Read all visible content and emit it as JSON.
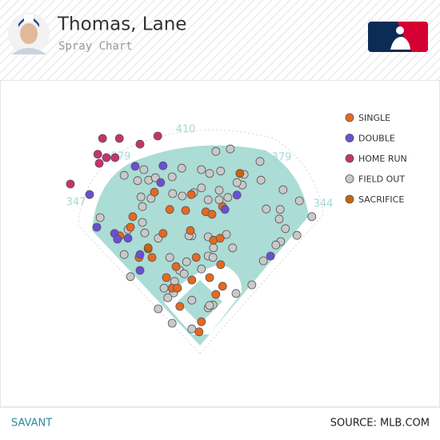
{
  "chart_data": {
    "type": "scatter",
    "title": "Thomas, Lane",
    "subtitle": "Spray Chart",
    "fence_labels": [
      347,
      379,
      410,
      379,
      344
    ],
    "xlim": [
      -280,
      280
    ],
    "ylim": [
      -20,
      440
    ],
    "legend": "top-right",
    "footer_left": "SAVANT",
    "footer_right": "SOURCE: MLB.COM",
    "series": [
      {
        "name": "SINGLE",
        "color": "#e8681e",
        "x": [
          -95,
          -63,
          -18,
          -30,
          12,
          25,
          -140,
          -77,
          -20,
          -108,
          -127,
          -100,
          28,
          42,
          47,
          -50,
          -70,
          -58,
          -8,
          43,
          20,
          -17,
          -47,
          33,
          47,
          -42,
          3,
          -2,
          -167,
          -145
        ],
        "y": [
          308,
          272,
          303,
          270,
          267,
          262,
          257,
          222,
          228,
          190,
          172,
          172,
          208,
          212,
          278,
          153,
          130,
          108,
          172,
          157,
          130,
          125,
          108,
          95,
          112,
          70,
          38,
          17,
          217,
          235
        ]
      },
      {
        "name": "DOUBLE",
        "color": "#6a4fd6",
        "x": [
          -135,
          -77,
          -82,
          77,
          -230,
          -215,
          -178,
          -172,
          -150,
          -125,
          -125,
          147,
          52
        ],
        "y": [
          362,
          363,
          328,
          302,
          303,
          235,
          222,
          210,
          212,
          178,
          145,
          175,
          272
        ]
      },
      {
        "name": "HOME RUN",
        "color": "#c8326e",
        "x": [
          -203,
          -168,
          -125,
          -88,
          -213,
          -195,
          -177,
          -210,
          -270
        ],
        "y": [
          420,
          420,
          408,
          425,
          387,
          380,
          380,
          368,
          325
        ]
      },
      {
        "name": "FIELD OUT",
        "color": "#c9c9c9",
        "x": [
          33,
          63,
          125,
          3,
          43,
          20,
          -38,
          -158,
          -117,
          -107,
          -130,
          -93,
          -58,
          3,
          -13,
          -37,
          -57,
          -123,
          -102,
          92,
          88,
          40,
          58,
          77,
          127,
          173,
          207,
          167,
          138,
          40,
          17,
          -208,
          -120,
          -120,
          -150,
          -115,
          -17,
          55,
          17,
          28,
          68,
          165,
          178,
          168,
          202,
          233,
          158,
          132,
          -158,
          -145,
          -63,
          -28,
          -42,
          17,
          27,
          3,
          -53,
          -75,
          -33,
          108,
          75,
          17,
          27,
          -87,
          -58,
          -17,
          20,
          -17,
          -55,
          -67,
          -23,
          -87
        ],
        "y": [
          393,
          398,
          372,
          355,
          352,
          347,
          358,
          343,
          355,
          333,
          332,
          338,
          340,
          317,
          307,
          300,
          305,
          298,
          295,
          345,
          323,
          312,
          297,
          328,
          333,
          313,
          290,
          272,
          273,
          292,
          292,
          255,
          278,
          245,
          230,
          223,
          217,
          220,
          215,
          192,
          192,
          252,
          232,
          205,
          218,
          257,
          198,
          165,
          178,
          132,
          172,
          163,
          145,
          175,
          172,
          148,
          122,
          108,
          138,
          115,
          97,
          67,
          73,
          65,
          35,
          23,
          72,
          83,
          98,
          88,
          217,
          212
        ]
      },
      {
        "name": "SACRIFICE",
        "color": "#c8650a",
        "x": [
          83,
          -108
        ],
        "y": [
          347,
          192
        ]
      }
    ]
  }
}
